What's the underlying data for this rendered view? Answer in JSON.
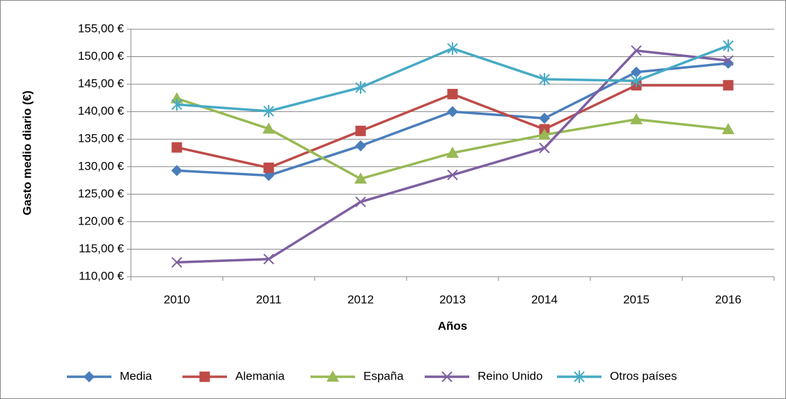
{
  "chart_data": {
    "type": "line",
    "x_label": "Años",
    "y_label": "Gasto medio diario (€)",
    "categories": [
      "2010",
      "2011",
      "2012",
      "2013",
      "2014",
      "2015",
      "2016"
    ],
    "series": [
      {
        "name": "Media",
        "color": "#4a7ebb",
        "marker": "diamond",
        "values": [
          129.3,
          128.4,
          133.8,
          140.0,
          138.8,
          147.2,
          148.8
        ]
      },
      {
        "name": "Alemania",
        "color": "#be4b48",
        "marker": "square",
        "values": [
          133.5,
          129.8,
          136.5,
          143.2,
          136.8,
          144.8,
          144.8
        ]
      },
      {
        "name": "España",
        "color": "#98b954",
        "marker": "triangle",
        "values": [
          142.4,
          136.9,
          127.8,
          132.5,
          135.8,
          138.6,
          136.8
        ]
      },
      {
        "name": "Reino Unido",
        "color": "#7d5fa0",
        "marker": "x",
        "values": [
          112.6,
          113.2,
          123.6,
          128.5,
          133.4,
          151.1,
          149.3
        ]
      },
      {
        "name": "Otros países",
        "color": "#46aac5",
        "marker": "star",
        "values": [
          141.3,
          140.1,
          144.4,
          151.5,
          145.9,
          145.6,
          152.0
        ]
      }
    ],
    "ylim": [
      110,
      155
    ],
    "yticks": [
      {
        "value": 110,
        "label": "110,00 €"
      },
      {
        "value": 115,
        "label": "115,00 €"
      },
      {
        "value": 120,
        "label": "120,00 €"
      },
      {
        "value": 125,
        "label": "125,00 €"
      },
      {
        "value": 130,
        "label": "130,00 €"
      },
      {
        "value": 135,
        "label": "135,00 €"
      },
      {
        "value": 140,
        "label": "140,00 €"
      },
      {
        "value": 145,
        "label": "145,00 €"
      },
      {
        "value": 150,
        "label": "150,00 €"
      },
      {
        "value": 155,
        "label": "155,00 €"
      }
    ],
    "grid": true,
    "legend": "bottom"
  }
}
